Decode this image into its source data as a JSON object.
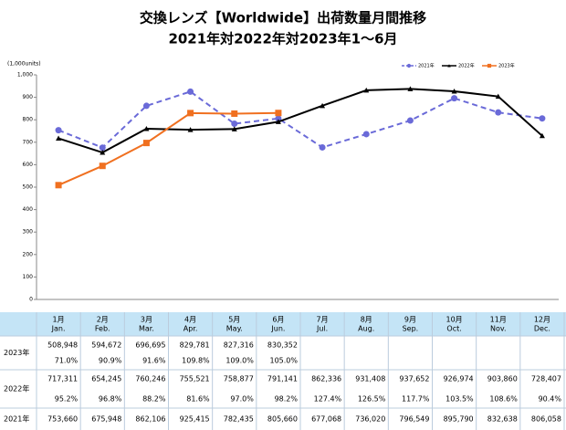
{
  "chart_data": {
    "type": "line",
    "title": [
      "交換レンズ【Worldwide】出荷数量月間推移",
      "2021年対2022年対2023年1～6月"
    ],
    "y_label": "(1,000units)",
    "ylim": [
      0,
      1000
    ],
    "yticks": [
      0,
      100,
      200,
      300,
      400,
      500,
      600,
      700,
      800,
      900,
      {
        "value": 1000,
        "label": "1,000"
      }
    ],
    "grid": false,
    "legend": "top-right",
    "series": [
      {
        "name": "2021年",
        "color": "#6a6ad8",
        "dash": true,
        "marker": "circle",
        "values": [
          753.66,
          675.948,
          862.106,
          925.415,
          782.435,
          805.66,
          677.068,
          736.02,
          796.549,
          895.79,
          832.638,
          806.058
        ]
      },
      {
        "name": "2022年",
        "color": "#000000",
        "dash": false,
        "marker": "triangle",
        "values": [
          717.311,
          654.245,
          760.246,
          755.521,
          758.877,
          791.141,
          862.336,
          931.408,
          937.652,
          926.974,
          903.86,
          728.407
        ]
      },
      {
        "name": "2023年",
        "color": "#f07020",
        "dash": false,
        "marker": "square",
        "values": [
          508.948,
          594.672,
          696.695,
          829.781,
          827.316,
          830.352,
          null,
          null,
          null,
          null,
          null,
          null
        ]
      }
    ]
  },
  "table": {
    "header": [
      {
        "ja": "1月",
        "en": "Jan."
      },
      {
        "ja": "2月",
        "en": "Feb."
      },
      {
        "ja": "3月",
        "en": "Mar."
      },
      {
        "ja": "4月",
        "en": "Apr."
      },
      {
        "ja": "5月",
        "en": "May."
      },
      {
        "ja": "6月",
        "en": "Jun."
      },
      {
        "ja": "7月",
        "en": "Jul."
      },
      {
        "ja": "8月",
        "en": "Aug."
      },
      {
        "ja": "9月",
        "en": "Sep."
      },
      {
        "ja": "10月",
        "en": "Oct."
      },
      {
        "ja": "11月",
        "en": "Nov."
      },
      {
        "ja": "12月",
        "en": "Dec."
      }
    ],
    "rows": [
      {
        "label": "2023年",
        "values": [
          "508,948",
          "594,672",
          "696,695",
          "829,781",
          "827,316",
          "830,352"
        ],
        "ratios": [
          "71.0%",
          "90.9%",
          "91.6%",
          "109.8%",
          "109.0%",
          "105.0%"
        ]
      },
      {
        "label": "2022年",
        "values": [
          "717,311",
          "654,245",
          "760,246",
          "755,521",
          "758,877",
          "791,141",
          "862,336",
          "931,408",
          "937,652",
          "926,974",
          "903,860",
          "728,407"
        ],
        "ratios": [
          "95.2%",
          "96.8%",
          "88.2%",
          "81.6%",
          "97.0%",
          "98.2%",
          "127.4%",
          "126.5%",
          "117.7%",
          "103.5%",
          "108.6%",
          "90.4%"
        ]
      },
      {
        "label": "2021年",
        "values": [
          "753,660",
          "675,948",
          "862,106",
          "925,415",
          "782,435",
          "805,660",
          "677,068",
          "736,020",
          "796,549",
          "895,790",
          "832,638",
          "806,058"
        ]
      }
    ]
  }
}
